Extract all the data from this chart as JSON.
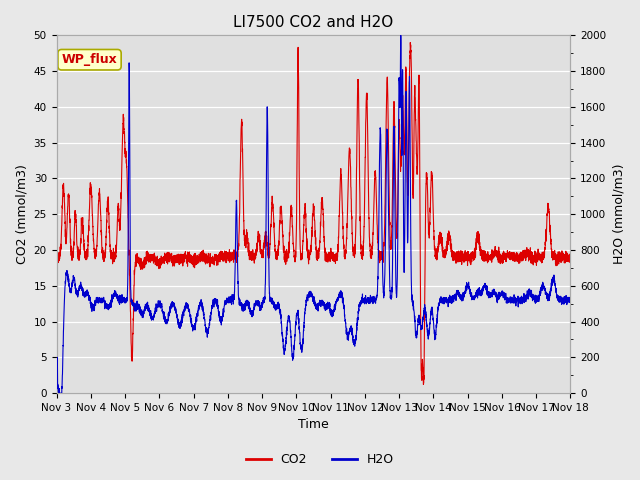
{
  "title": "LI7500 CO2 and H2O",
  "xlabel": "Time",
  "ylabel_left": "CO2 (mmol/m3)",
  "ylabel_right": "H2O (mmol/m3)",
  "annotation": "WP_flux",
  "annotation_color": "#cc0000",
  "x_tick_labels": [
    "Nov 3",
    "Nov 4",
    "Nov 5",
    "Nov 6",
    "Nov 7",
    "Nov 8",
    "Nov 9",
    "Nov 10",
    "Nov 11",
    "Nov 12",
    "Nov 13",
    "Nov 14",
    "Nov 15",
    "Nov 16",
    "Nov 17",
    "Nov 18"
  ],
  "ylim_left": [
    0,
    50
  ],
  "ylim_right": [
    0,
    2000
  ],
  "yticks_left": [
    0,
    5,
    10,
    15,
    20,
    25,
    30,
    35,
    40,
    45,
    50
  ],
  "yticks_right": [
    0,
    200,
    400,
    600,
    800,
    1000,
    1200,
    1400,
    1600,
    1800,
    2000
  ],
  "co2_color": "#dd0000",
  "h2o_color": "#0000cc",
  "fig_bg_color": "#e8e8e8",
  "plot_bg_color": "#e0e0e0",
  "grid_color": "#ffffff",
  "legend_co2": "CO2",
  "legend_h2o": "H2O",
  "title_fontsize": 11,
  "axis_label_fontsize": 9,
  "tick_fontsize": 7.5,
  "legend_fontsize": 9,
  "linewidth_co2": 0.8,
  "linewidth_h2o": 0.8,
  "n_days": 15,
  "n_per_day": 288
}
